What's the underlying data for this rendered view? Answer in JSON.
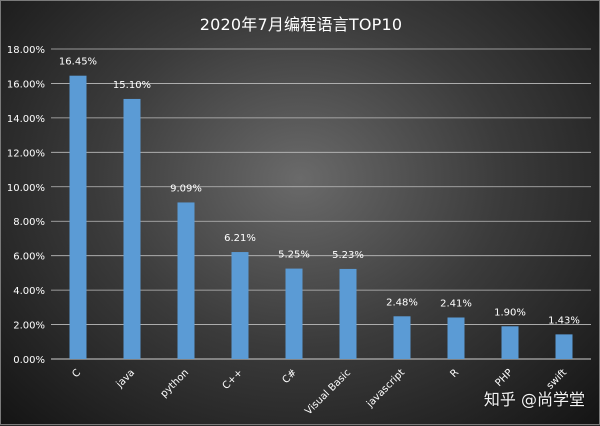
{
  "chart_data": {
    "type": "bar",
    "title": "2020年7月编程语言TOP10",
    "categories": [
      "C",
      "java",
      "python",
      "C++",
      "C#",
      "Visual Basic",
      "javascript",
      "R",
      "PHP",
      "swift"
    ],
    "values": [
      16.45,
      15.1,
      9.09,
      6.21,
      5.25,
      5.23,
      2.48,
      2.41,
      1.9,
      1.43
    ],
    "data_labels": [
      "16.45%",
      "15.10%",
      "9.09%",
      "6.21%",
      "5.25%",
      "5.23%",
      "2.48%",
      "2.41%",
      "1.90%",
      "1.43%"
    ],
    "y_ticks": [
      "0.00%",
      "2.00%",
      "4.00%",
      "6.00%",
      "8.00%",
      "10.00%",
      "12.00%",
      "14.00%",
      "16.00%",
      "18.00%"
    ],
    "ylim": [
      0,
      18
    ],
    "y_step": 2,
    "grid": true,
    "xlabel": "",
    "ylabel": "",
    "bar_color": "#5b9bd5"
  },
  "watermark": "知乎 @尚学堂"
}
